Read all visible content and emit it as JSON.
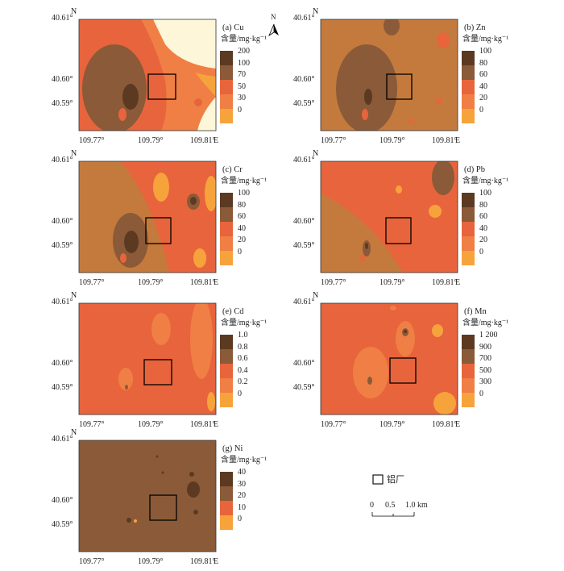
{
  "panels": [
    {
      "id": "a",
      "title": "(a) Cu",
      "unit": "含量/mg·kg⁻¹",
      "legend": [
        "200",
        "100",
        "70",
        "50",
        "30",
        "0"
      ]
    },
    {
      "id": "b",
      "title": "(b) Zn",
      "unit": "含量/mg·kg⁻¹",
      "legend": [
        "100",
        "80",
        "60",
        "40",
        "20",
        "0"
      ]
    },
    {
      "id": "c",
      "title": "(c) Cr",
      "unit": "含量/mg·kg⁻¹",
      "legend": [
        "100",
        "80",
        "60",
        "40",
        "20",
        "0"
      ]
    },
    {
      "id": "d",
      "title": "(d) Pb",
      "unit": "含量/mg·kg⁻¹",
      "legend": [
        "100",
        "80",
        "60",
        "40",
        "20",
        "0"
      ]
    },
    {
      "id": "e",
      "title": "(e) Cd",
      "unit": "含量/mg·kg⁻¹",
      "legend": [
        "1.0",
        "0.8",
        "0.6",
        "0.4",
        "0.2",
        "0"
      ]
    },
    {
      "id": "f",
      "title": "(f) Mn",
      "unit": "含量/mg·kg⁻¹",
      "legend": [
        "1 200",
        "900",
        "700",
        "500",
        "300",
        "0"
      ]
    },
    {
      "id": "g",
      "title": "(g) Ni",
      "unit": "含量/mg·kg⁻¹",
      "legend": [
        "40",
        "30",
        "20",
        "10",
        "0"
      ]
    }
  ],
  "axes": {
    "y_ticks": [
      "40.61°",
      "40.60°",
      "40.59°"
    ],
    "x_ticks": [
      "109.77°",
      "109.79°",
      "109.81°"
    ],
    "north": "N",
    "east": "E"
  },
  "colors": [
    "#5c3a22",
    "#8b5a38",
    "#e8643c",
    "#f07f45",
    "#f7a33c",
    "#fdf6d8"
  ],
  "north_arrow": "N",
  "key": {
    "label": "铝厂"
  },
  "scale": {
    "labels": [
      "0",
      "0.5",
      "1.0 km"
    ]
  }
}
